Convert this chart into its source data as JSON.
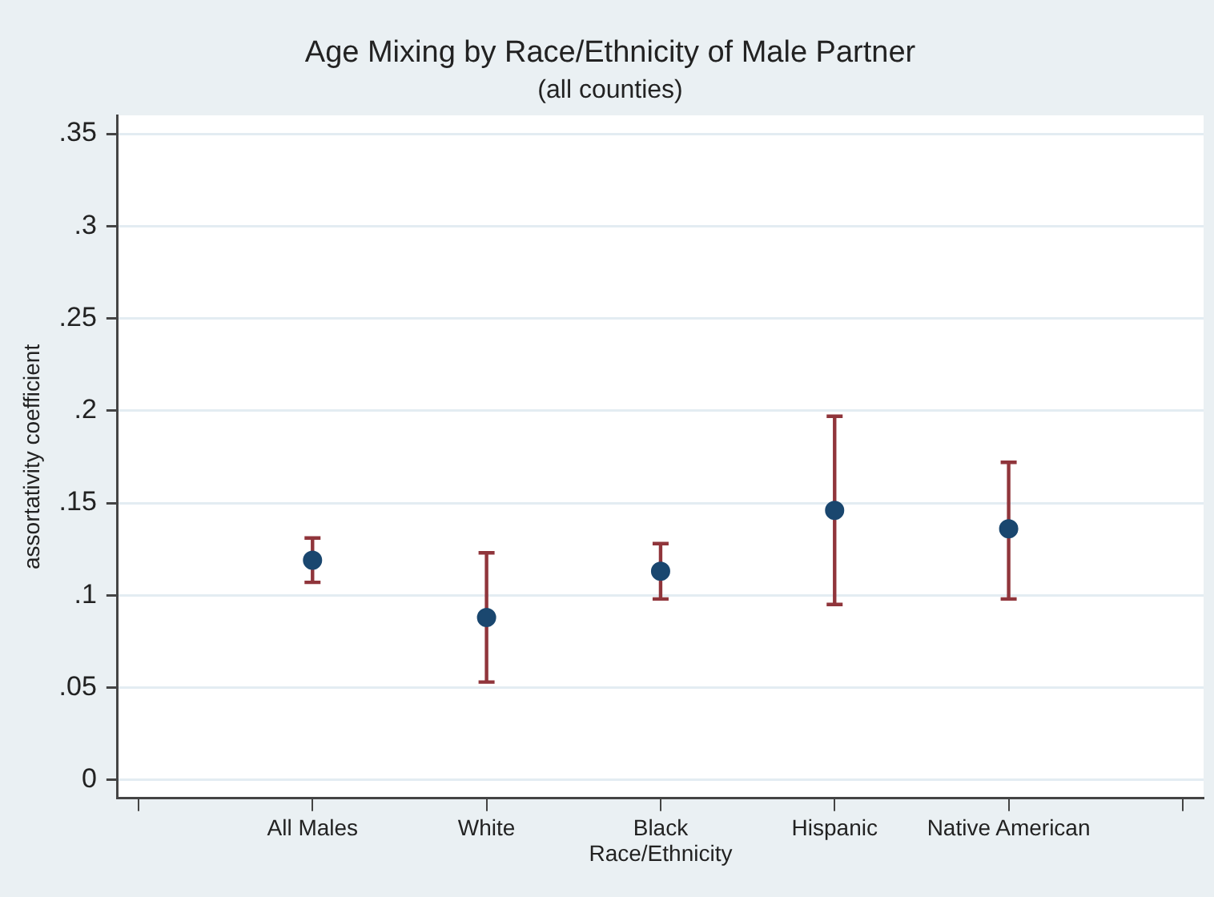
{
  "chart_data": {
    "type": "scatter",
    "title": "Age Mixing by Race/Ethnicity of Male Partner",
    "subtitle": "(all counties)",
    "xlabel": "Race/Ethnicity",
    "ylabel": "assortativity coefficient",
    "categories": [
      null,
      "All Males",
      "White",
      "Black",
      "Hispanic",
      "Native American",
      null
    ],
    "series": [
      {
        "color": "#1a476f",
        "values": [
          null,
          0.119,
          0.088,
          0.113,
          0.146,
          0.136,
          null
        ],
        "errors": [
          null,
          [
            0.107,
            0.131
          ],
          [
            0.053,
            0.123
          ],
          [
            0.098,
            0.128
          ],
          [
            0.095,
            0.197
          ],
          [
            0.098,
            0.172
          ],
          null
        ]
      }
    ],
    "ylim": [
      -0.01,
      0.36
    ],
    "yticks": [
      0,
      {
        "value": 0.05,
        "label": ".05"
      },
      {
        "value": 0.1,
        "label": ".1"
      },
      {
        "value": 0.15,
        "label": ".15"
      },
      {
        "value": 0.2,
        "label": ".2"
      },
      {
        "value": 0.25,
        "label": ".25"
      },
      {
        "value": 0.3,
        "label": ".3"
      },
      {
        "value": 0.35,
        "label": ".35"
      }
    ],
    "grid": "y",
    "legend": false,
    "marker": "circle"
  }
}
